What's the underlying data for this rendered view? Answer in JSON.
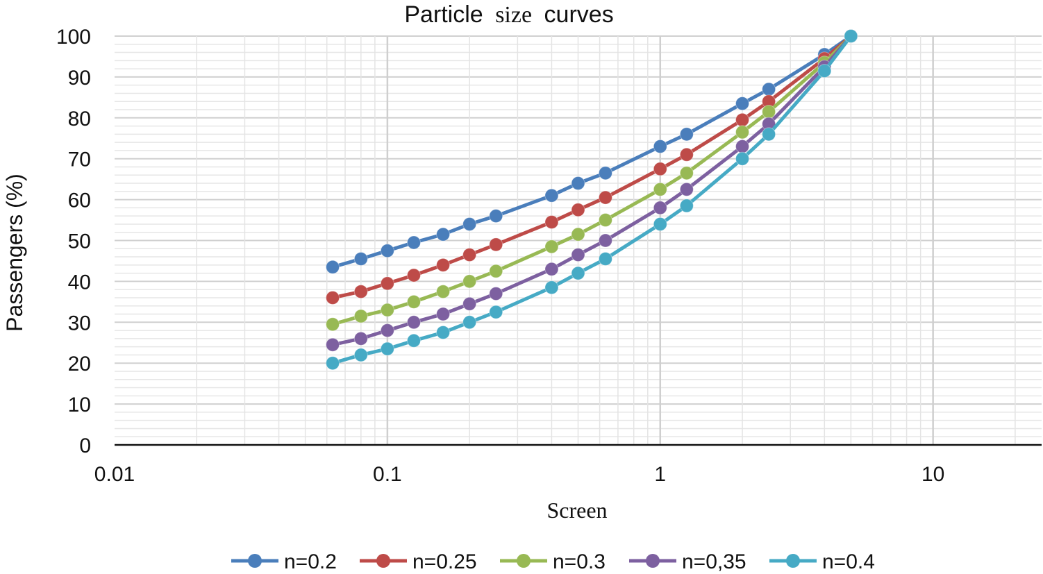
{
  "chart_data": {
    "type": "line",
    "title_main": "Particle",
    "title_mid": "size",
    "title_end": "curves",
    "xlabel": "Screen",
    "ylabel": "Passengers (%)",
    "xscale": "log",
    "xlim": [
      0.01,
      25
    ],
    "ylim": [
      0,
      100
    ],
    "x_ticks": [
      0.01,
      0.1,
      1,
      10
    ],
    "x_tick_labels": [
      "0.01",
      "0.1",
      "1",
      "10"
    ],
    "y_ticks": [
      0,
      10,
      20,
      30,
      40,
      50,
      60,
      70,
      80,
      90,
      100
    ],
    "y_tick_labels": [
      "0",
      "10",
      "20",
      "30",
      "40",
      "50",
      "60",
      "70",
      "80",
      "90",
      "100"
    ],
    "legend_position": "bottom",
    "x": [
      0.063,
      0.08,
      0.1,
      0.125,
      0.16,
      0.2,
      0.25,
      0.4,
      0.5,
      0.63,
      1,
      1.25,
      2,
      2.5,
      4,
      5
    ],
    "series": [
      {
        "name": "n=0.2",
        "color": "#4a7ebb",
        "values": [
          43.5,
          45.5,
          47.5,
          49.5,
          51.5,
          54,
          56,
          61,
          64,
          66.5,
          73,
          76,
          83.5,
          87,
          95.5,
          100
        ]
      },
      {
        "name": "n=0.25",
        "color": "#be4b48",
        "values": [
          36,
          37.5,
          39.5,
          41.5,
          44,
          46.5,
          49,
          54.5,
          57.5,
          60.5,
          67.5,
          71,
          79.5,
          84,
          94.5,
          100
        ]
      },
      {
        "name": "n=0.3",
        "color": "#98b954",
        "values": [
          29.5,
          31.5,
          33,
          35,
          37.5,
          40,
          42.5,
          48.5,
          51.5,
          55,
          62.5,
          66.5,
          76.5,
          81.5,
          93.5,
          100
        ]
      },
      {
        "name": "n=0,35",
        "color": "#7d60a0",
        "values": [
          24.5,
          26,
          28,
          30,
          32,
          34.5,
          37,
          43,
          46.5,
          50,
          58,
          62.5,
          73,
          78.5,
          92.5,
          100
        ]
      },
      {
        "name": "n=0.4",
        "color": "#46aac5",
        "values": [
          20,
          22,
          23.5,
          25.5,
          27.5,
          30,
          32.5,
          38.5,
          42,
          45.5,
          54,
          58.5,
          70,
          76,
          91.5,
          100
        ]
      }
    ]
  }
}
